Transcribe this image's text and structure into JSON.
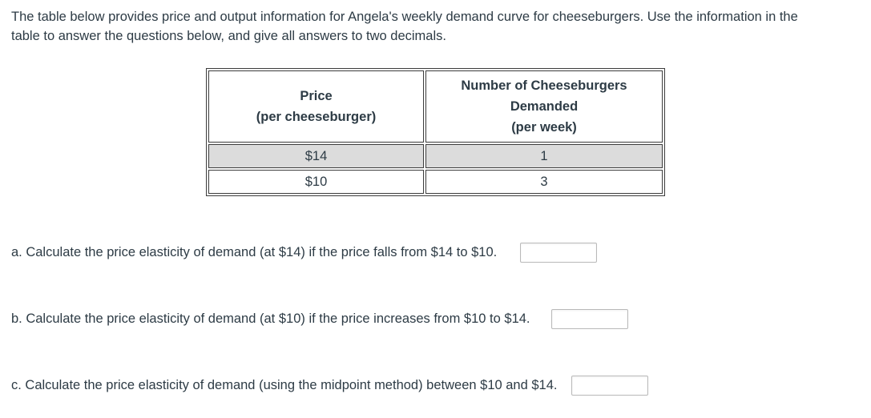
{
  "colors": {
    "page_background": "#ffffff",
    "text": "#2d3b45",
    "table_border": "#3c3c3c",
    "shaded_row_background": "#dcdcdc",
    "input_border": "#b9b9b9"
  },
  "intro": {
    "full_text": "The table below provides price and output information for Angela's weekly demand curve for cheeseburgers. Use the information in the table to answer the questions below, and give all answers to two decimals.",
    "lines": [
      "The table below provides price and output information for Angela's weekly demand curve for cheeseburgers. Use the information in the",
      "table to answer the questions below, and give all answers to two decimals."
    ]
  },
  "table": {
    "columns": [
      {
        "lines": [
          "Price",
          "(per cheeseburger)"
        ]
      },
      {
        "lines": [
          "Number of Cheeseburgers",
          "Demanded",
          "(per week)"
        ]
      }
    ],
    "rows": [
      {
        "price": "$14",
        "quantity": "1",
        "shaded": true
      },
      {
        "price": "$10",
        "quantity": "3",
        "shaded": false
      }
    ]
  },
  "questions": [
    {
      "id": "a",
      "text": "a. Calculate the price elasticity of demand (at $14) if the price falls from $14 to $10.",
      "value": "",
      "placeholder": ""
    },
    {
      "id": "b",
      "text": "b. Calculate the price elasticity of demand (at $10) if the price increases from $10 to $14.",
      "value": "",
      "placeholder": ""
    },
    {
      "id": "c",
      "text": "c. Calculate the price elasticity of demand (using the midpoint method) between $10 and $14.",
      "value": "",
      "placeholder": ""
    }
  ]
}
